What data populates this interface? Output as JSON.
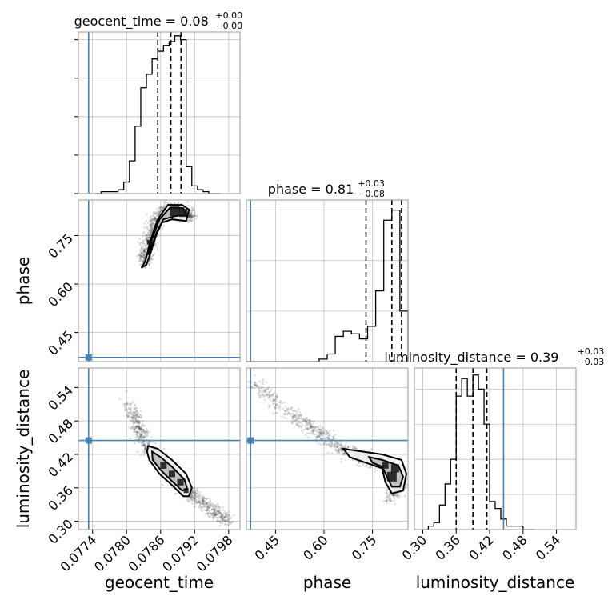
{
  "chart_data": {
    "type": "corner",
    "parameters": [
      "geocent_time",
      "phase",
      "luminosity_distance"
    ],
    "truths": {
      "geocent_time": 0.07733,
      "phase": 0.373,
      "luminosity_distance": 0.445
    },
    "truth_color": "#4682b4",
    "grid": true,
    "marginals": [
      {
        "parameter": "geocent_time",
        "title_text": "geocent_time = 0.08",
        "title_sup": "+0.00",
        "title_sub": "−0.00",
        "xlim": [
          0.07715,
          0.08
        ],
        "quantiles": [
          0.07855,
          0.07878,
          0.07896
        ],
        "bin_edges": [
          0.07745,
          0.07755,
          0.07765,
          0.07775,
          0.07785,
          0.07795,
          0.07805,
          0.07815,
          0.07825,
          0.07835,
          0.07845,
          0.07855,
          0.07865,
          0.07875,
          0.07885,
          0.07895,
          0.07905,
          0.07915,
          0.07925,
          0.07935,
          0.07945,
          0.07955,
          0.07965
        ],
        "counts": [
          0,
          1,
          1,
          1,
          2,
          6,
          17,
          35,
          55,
          62,
          70,
          74,
          77,
          79,
          82,
          80,
          14,
          4,
          2,
          1,
          0,
          0
        ],
        "yticks": [
          0,
          20,
          40,
          60,
          80
        ],
        "ylim": [
          0,
          84
        ]
      },
      {
        "parameter": "phase",
        "title_text": "phase = 0.81",
        "title_sup": "+0.03",
        "title_sub": "−0.08",
        "xlim": [
          0.36,
          0.86
        ],
        "quantiles": [
          0.73,
          0.81,
          0.84
        ],
        "bin_edges": [
          0.36,
          0.385,
          0.41,
          0.435,
          0.46,
          0.485,
          0.51,
          0.535,
          0.56,
          0.585,
          0.61,
          0.635,
          0.66,
          0.685,
          0.71,
          0.735,
          0.76,
          0.785,
          0.81,
          0.835,
          0.86
        ],
        "counts": [
          0,
          0,
          0,
          0,
          0,
          0,
          0,
          0,
          0,
          1,
          3,
          10,
          12,
          11,
          9,
          14,
          28,
          56,
          60,
          20
        ],
        "yticks": [
          0,
          20,
          40,
          60
        ],
        "ylim": [
          0,
          64
        ]
      },
      {
        "parameter": "luminosity_distance",
        "title_text": "luminosity_distance = 0.39",
        "title_sup": "+0.03",
        "title_sub": "−0.03",
        "xlim": [
          0.285,
          0.575
        ],
        "quantiles": [
          0.36,
          0.39,
          0.415
        ],
        "bin_edges": [
          0.3,
          0.31,
          0.32,
          0.33,
          0.34,
          0.35,
          0.36,
          0.37,
          0.38,
          0.39,
          0.4,
          0.41,
          0.42,
          0.43,
          0.44,
          0.45,
          0.46,
          0.47,
          0.48,
          0.49,
          0.5
        ],
        "counts": [
          0,
          1,
          2,
          7,
          13,
          20,
          38,
          43,
          38,
          44,
          40,
          30,
          8,
          6,
          3,
          1,
          1,
          1,
          0,
          0
        ],
        "yticks": [
          0,
          10,
          20,
          30,
          40
        ],
        "ylim": [
          0,
          46
        ]
      }
    ],
    "axes": {
      "geocent_time": {
        "label": "geocent_time",
        "lim": [
          0.07715,
          0.08
        ],
        "ticks": [
          0.0774,
          0.078,
          0.0786,
          0.0792,
          0.0798
        ],
        "ticklabels": [
          "0.0774",
          "0.0780",
          "0.0786",
          "0.0792",
          "0.0798"
        ]
      },
      "phase": {
        "label": "phase",
        "lim": [
          0.36,
          0.86
        ],
        "ticks": [
          0.45,
          0.6,
          0.75
        ],
        "ticklabels": [
          "0.45",
          "0.60",
          "0.75"
        ]
      },
      "luminosity_distance": {
        "label": "luminosity_distance",
        "lim": [
          0.285,
          0.575
        ],
        "ticks": [
          0.3,
          0.36,
          0.42,
          0.48,
          0.54
        ],
        "ticklabels": [
          "0.30",
          "0.36",
          "0.42",
          "0.48",
          "0.54"
        ]
      }
    },
    "scatter_pairs": [
      {
        "x_param": "geocent_time",
        "y_param": "phase",
        "centerline": [
          [
            0.0783,
            0.66
          ],
          [
            0.07836,
            0.7
          ],
          [
            0.07845,
            0.77
          ],
          [
            0.0786,
            0.82
          ],
          [
            0.0788,
            0.83
          ],
          [
            0.079,
            0.82
          ],
          [
            0.07915,
            0.81
          ]
        ],
        "blobs": [
          [
            0.07885,
            0.825,
            6
          ],
          [
            0.079,
            0.82,
            5
          ],
          [
            0.0784,
            0.73,
            3
          ]
        ],
        "contour_levels": [
          [
            [
              0.07826,
              0.65
            ],
            [
              0.07833,
              0.67
            ],
            [
              0.07843,
              0.74
            ],
            [
              0.07855,
              0.8
            ],
            [
              0.07873,
              0.845
            ],
            [
              0.07898,
              0.845
            ],
            [
              0.0791,
              0.83
            ],
            [
              0.07905,
              0.795
            ],
            [
              0.0788,
              0.8
            ],
            [
              0.07862,
              0.79
            ],
            [
              0.07852,
              0.75
            ],
            [
              0.07843,
              0.7
            ],
            [
              0.07835,
              0.66
            ],
            [
              0.07826,
              0.65
            ]
          ],
          [
            [
              0.07838,
              0.69
            ],
            [
              0.07845,
              0.74
            ],
            [
              0.07858,
              0.8
            ],
            [
              0.07876,
              0.835
            ],
            [
              0.079,
              0.835
            ],
            [
              0.07905,
              0.815
            ],
            [
              0.07885,
              0.81
            ],
            [
              0.07865,
              0.8
            ],
            [
              0.07853,
              0.76
            ],
            [
              0.07843,
              0.71
            ],
            [
              0.07838,
              0.69
            ]
          ]
        ]
      },
      {
        "x_param": "geocent_time",
        "y_param": "luminosity_distance",
        "centerline": [
          [
            0.07805,
            0.51
          ],
          [
            0.0782,
            0.47
          ],
          [
            0.07835,
            0.435
          ],
          [
            0.0786,
            0.41
          ],
          [
            0.0788,
            0.385
          ],
          [
            0.079,
            0.36
          ],
          [
            0.0792,
            0.345
          ],
          [
            0.0795,
            0.32
          ],
          [
            0.0798,
            0.3
          ]
        ],
        "blobs": [
          [
            0.07865,
            0.4,
            4
          ],
          [
            0.0788,
            0.385,
            4
          ],
          [
            0.07895,
            0.37,
            4
          ],
          [
            0.07905,
            0.355,
            3
          ]
        ],
        "contour_levels": [
          [
            [
              0.07838,
              0.435
            ],
            [
              0.07855,
              0.43
            ],
            [
              0.0788,
              0.41
            ],
            [
              0.07905,
              0.385
            ],
            [
              0.07915,
              0.36
            ],
            [
              0.0791,
              0.345
            ],
            [
              0.079,
              0.345
            ],
            [
              0.0788,
              0.365
            ],
            [
              0.07858,
              0.385
            ],
            [
              0.0784,
              0.41
            ],
            [
              0.07836,
              0.425
            ],
            [
              0.07838,
              0.435
            ]
          ],
          [
            [
              0.07845,
              0.425
            ],
            [
              0.0786,
              0.415
            ],
            [
              0.0788,
              0.398
            ],
            [
              0.07902,
              0.375
            ],
            [
              0.07907,
              0.358
            ],
            [
              0.07898,
              0.355
            ],
            [
              0.0788,
              0.372
            ],
            [
              0.0786,
              0.392
            ],
            [
              0.07846,
              0.41
            ],
            [
              0.07845,
              0.425
            ]
          ]
        ]
      },
      {
        "x_param": "phase",
        "y_param": "luminosity_distance",
        "centerline": [
          [
            0.38,
            0.55
          ],
          [
            0.5,
            0.49
          ],
          [
            0.58,
            0.46
          ],
          [
            0.65,
            0.43
          ],
          [
            0.72,
            0.415
          ],
          [
            0.78,
            0.405
          ],
          [
            0.82,
            0.39
          ],
          [
            0.84,
            0.37
          ],
          [
            0.8,
            0.335
          ]
        ],
        "blobs": [
          [
            0.81,
            0.38,
            6
          ],
          [
            0.82,
            0.395,
            5
          ],
          [
            0.79,
            0.4,
            4
          ]
        ],
        "contour_levels": [
          [
            [
              0.66,
              0.43
            ],
            [
              0.72,
              0.425
            ],
            [
              0.78,
              0.42
            ],
            [
              0.84,
              0.41
            ],
            [
              0.855,
              0.385
            ],
            [
              0.845,
              0.355
            ],
            [
              0.81,
              0.35
            ],
            [
              0.79,
              0.37
            ],
            [
              0.78,
              0.395
            ],
            [
              0.73,
              0.405
            ],
            [
              0.68,
              0.415
            ],
            [
              0.66,
              0.43
            ]
          ],
          [
            [
              0.74,
              0.415
            ],
            [
              0.78,
              0.41
            ],
            [
              0.83,
              0.4
            ],
            [
              0.845,
              0.38
            ],
            [
              0.835,
              0.362
            ],
            [
              0.81,
              0.362
            ],
            [
              0.795,
              0.38
            ],
            [
              0.78,
              0.398
            ],
            [
              0.75,
              0.405
            ],
            [
              0.74,
              0.415
            ]
          ]
        ]
      }
    ]
  }
}
